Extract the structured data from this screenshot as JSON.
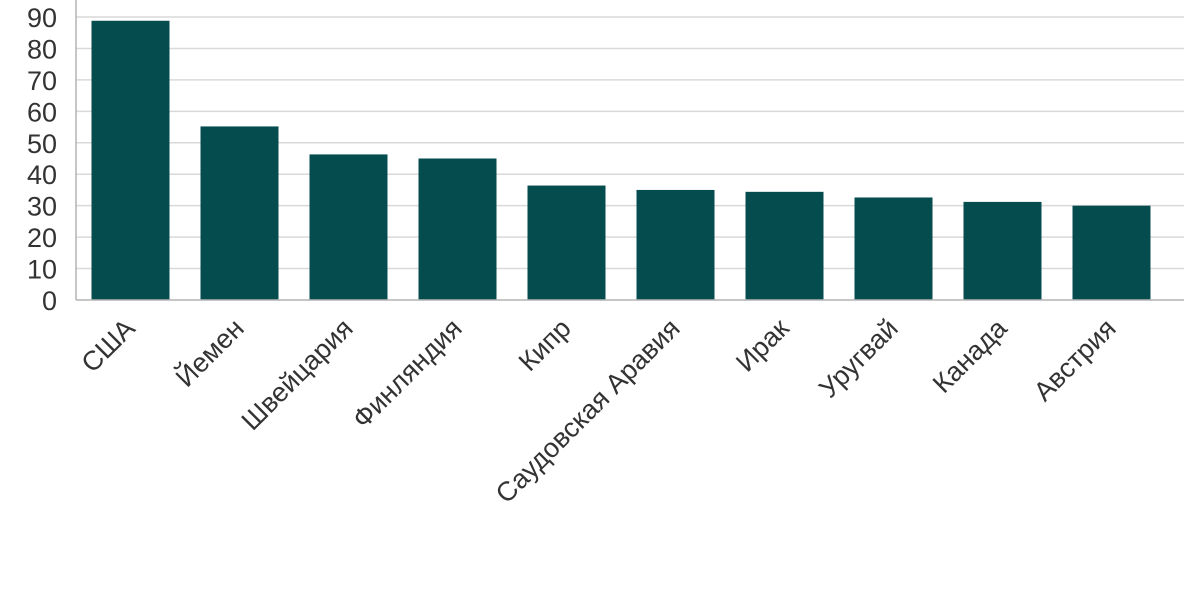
{
  "chart_data": {
    "type": "bar",
    "title": "",
    "xlabel": "",
    "ylabel": "",
    "categories": [
      "США",
      "Йемен",
      "Швейцария",
      "Финляндия",
      "Кипр",
      "Саудовская Аравия",
      "Ирак",
      "Уругвай",
      "Канада",
      "Австрия"
    ],
    "values": [
      88.8,
      55.2,
      46.3,
      45.0,
      36.4,
      35.0,
      34.4,
      32.6,
      31.2,
      30.0
    ],
    "ylim": [
      0,
      90
    ],
    "yticks": [
      "0",
      "10",
      "20",
      "30",
      "40",
      "50",
      "60",
      "70",
      "80",
      "90"
    ],
    "grid": true,
    "legend": "none",
    "bar_color": "#054c4f"
  }
}
